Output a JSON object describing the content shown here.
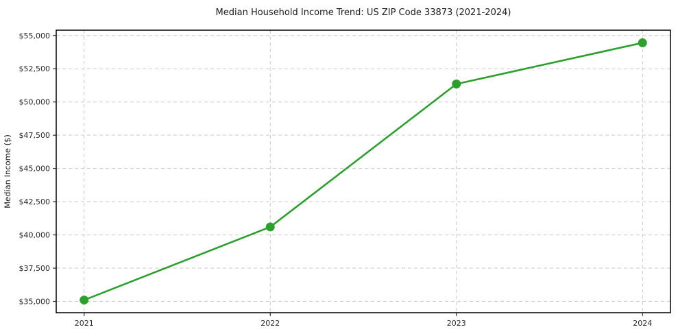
{
  "chart_data": {
    "type": "line",
    "title": "Median Household Income Trend: US ZIP Code 33873 (2021-2024)",
    "xlabel": "",
    "ylabel": "Median Income ($)",
    "x": [
      2021,
      2022,
      2023,
      2024
    ],
    "x_tick_labels": [
      "2021",
      "2022",
      "2023",
      "2024"
    ],
    "values": [
      35100,
      40600,
      51350,
      54450
    ],
    "y_ticks": [
      35000,
      37500,
      40000,
      42500,
      45000,
      47500,
      50000,
      52500,
      55000
    ],
    "y_tick_labels": [
      "$35,000",
      "$37,500",
      "$40,000",
      "$42,500",
      "$45,000",
      "$47,500",
      "$50,000",
      "$52,500",
      "$55,000"
    ],
    "ylim": [
      34150,
      55400
    ],
    "xlim": [
      2020.85,
      2024.15
    ],
    "grid": true,
    "grid_style": "dashed",
    "legend": "none",
    "colors": {
      "line": "#2ca02c",
      "marker": "#2ca02c",
      "grid": "#c9c9c9",
      "axis": "#000000",
      "background": "#ffffff"
    }
  }
}
